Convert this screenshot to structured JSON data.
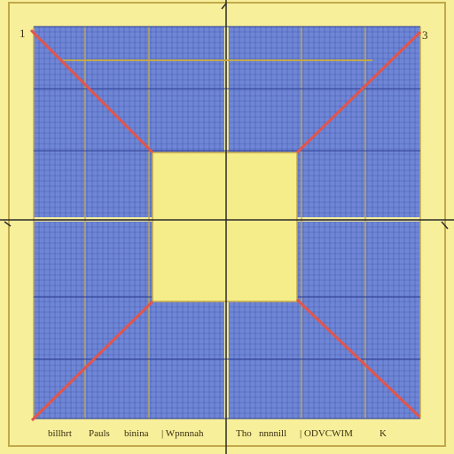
{
  "colors": {
    "background": "#f7ef9a",
    "grid_fill": "#6f86d6",
    "grid_line": "#2f3f95",
    "frame_line": "#c2a84a",
    "center_square": "#f5ec8a",
    "diagonal": "#e2554b"
  },
  "corner_labels": {
    "top_left": "1",
    "top_right": "3"
  },
  "footer": {
    "text_1": "billhrt",
    "text_2": "Pauls",
    "text_3": "binina",
    "text_4": "| Wpnnnah",
    "text_5": "Tho",
    "text_6": "nnnnill",
    "text_7": "| ODVCWIM",
    "text_8": "K"
  }
}
